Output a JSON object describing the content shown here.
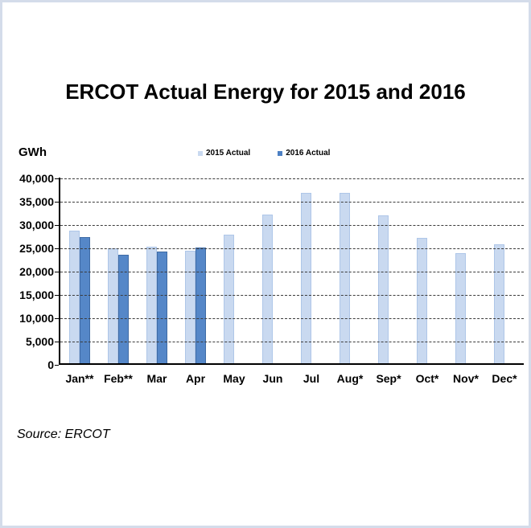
{
  "page": {
    "border_color": "#d4dcea",
    "background_color": "#ffffff"
  },
  "title": "ERCOT Actual Energy for 2015 and 2016",
  "y_axis_unit_label": "GWh",
  "source_note": "Source: ERCOT",
  "legend": [
    {
      "label": "2015 Actual",
      "color": "#c9d9f0"
    },
    {
      "label": "2016 Actual",
      "color": "#4d80c4"
    }
  ],
  "chart_data": {
    "type": "bar",
    "title": "ERCOT Actual Energy for 2015 and 2016",
    "xlabel": "",
    "ylabel": "GWh",
    "ylim": [
      0,
      40000
    ],
    "ytick_interval": 5000,
    "ytick_labels": [
      "40,000",
      "35,000",
      "30,000",
      "25,000",
      "20,000",
      "15,000",
      "10,000",
      "5,000",
      "0"
    ],
    "grid": "horizontal-dashed",
    "legend_position": "top-center",
    "categories": [
      "Jan**",
      "Feb**",
      "Mar",
      "Apr",
      "May",
      "Jun",
      "Jul",
      "Aug*",
      "Sep*",
      "Oct*",
      "Nov*",
      "Dec*"
    ],
    "series": [
      {
        "name": "2015 Actual",
        "fill_color": "#c9d9f0",
        "border_color": "#aec6e8",
        "values": [
          28700,
          24900,
          25300,
          24400,
          27800,
          32200,
          36800,
          36800,
          32000,
          27200,
          23900,
          25700
        ]
      },
      {
        "name": "2016 Actual",
        "fill_color": "#5587c8",
        "border_color": "#3f6ba5",
        "values": [
          27300,
          23400,
          24200,
          25000,
          null,
          null,
          null,
          null,
          null,
          null,
          null,
          null
        ]
      }
    ]
  }
}
